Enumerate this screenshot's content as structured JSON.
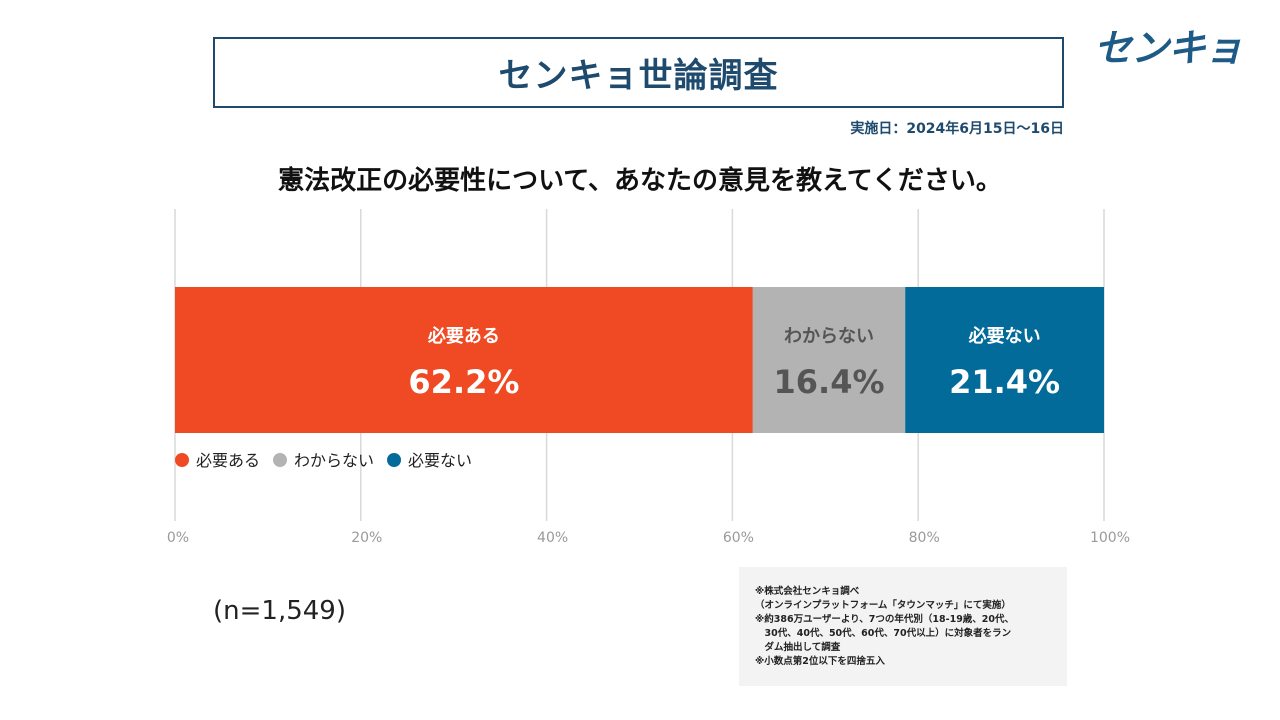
{
  "header": {
    "title": "センキョ世論調査",
    "logo_text": "センキョ",
    "date": "実施日：2024年6月15日～16日"
  },
  "question": "憲法改正の必要性について、あなたの意見を教えてください。",
  "chart_data": {
    "type": "bar",
    "orientation": "horizontal-stacked-100",
    "categories": [
      "必要ある",
      "わからない",
      "必要ない"
    ],
    "series": [
      {
        "name": "必要ある",
        "value": 62.2,
        "label": "62.2%",
        "color": "#ef4a23",
        "text_color": "#ffffff"
      },
      {
        "name": "わからない",
        "value": 16.4,
        "label": "16.4%",
        "color": "#b3b3b3",
        "text_color": "#555555"
      },
      {
        "name": "必要ない",
        "value": 21.4,
        "label": "21.4%",
        "color": "#036b99",
        "text_color": "#ffffff"
      }
    ],
    "xlim": [
      0,
      100
    ],
    "xticks": [
      "0%",
      "20%",
      "40%",
      "60%",
      "80%",
      "100%"
    ],
    "grid": true,
    "legend": "bottom-left"
  },
  "sample_size": "(n=1,549)",
  "notes": [
    "※株式会社センキョ調べ",
    "（オンラインプラットフォーム「タウンマッチ」にて実施）",
    "※約386万ユーザーより、7つの年代別（18-19歳、20代、",
    "　30代、40代、50代、60代、70代以上）に対象者をラン",
    "　ダム抽出して調査",
    "※小数点第2位以下を四捨五入"
  ]
}
